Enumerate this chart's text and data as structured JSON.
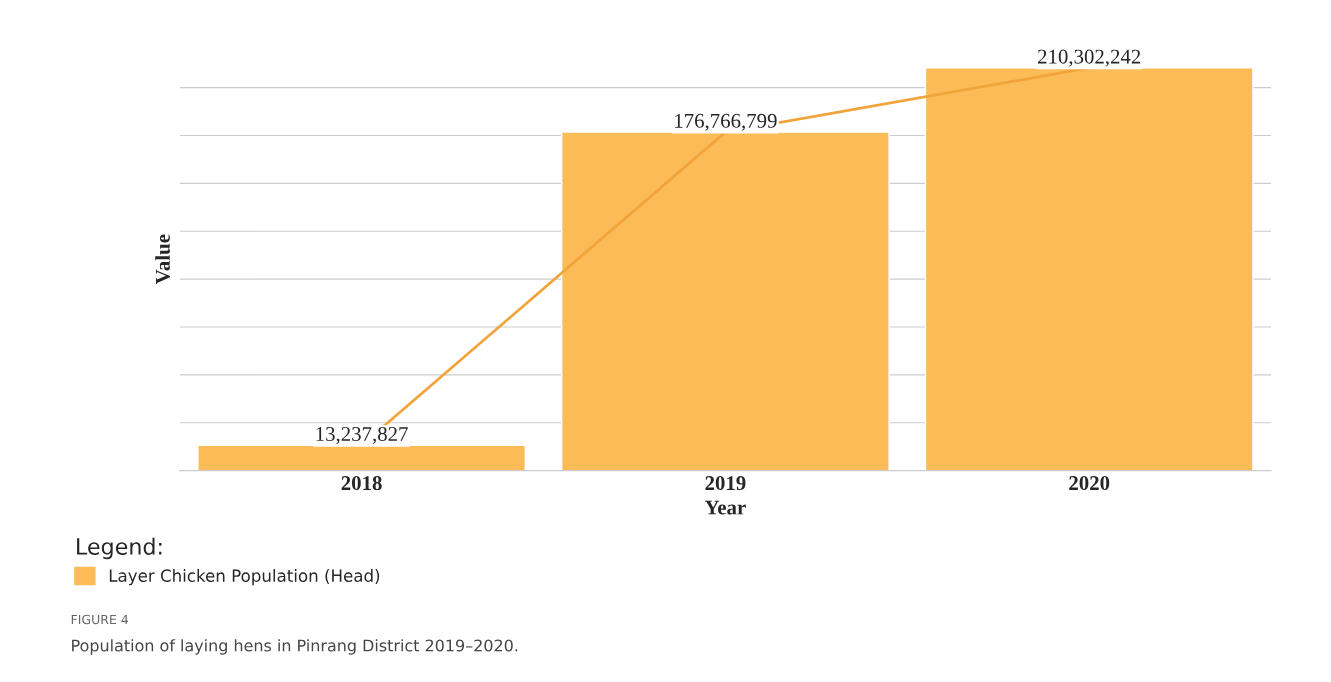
{
  "chart_data": {
    "type": "bar",
    "categories": [
      "2018",
      "2019",
      "2020"
    ],
    "series": [
      {
        "name": "Layer Chicken Population (Head)",
        "color": "#fbbc58",
        "values": [
          13237827,
          176766799,
          210302242
        ],
        "value_labels": [
          "13,237,827",
          "176,766,799",
          "210,302,242"
        ]
      },
      {
        "type": "line",
        "color": "#f2a43a",
        "values": [
          13237827,
          176766799,
          210302242
        ]
      }
    ],
    "xlabel": "Year",
    "ylabel": "Value",
    "legend_title": "Legend:",
    "legend": "bottom left",
    "tick_labels": "x",
    "grid": "y",
    "annotations": [
      "FIGURE 4",
      "Population of laying hens in Pinrang District 2019–2020."
    ]
  }
}
